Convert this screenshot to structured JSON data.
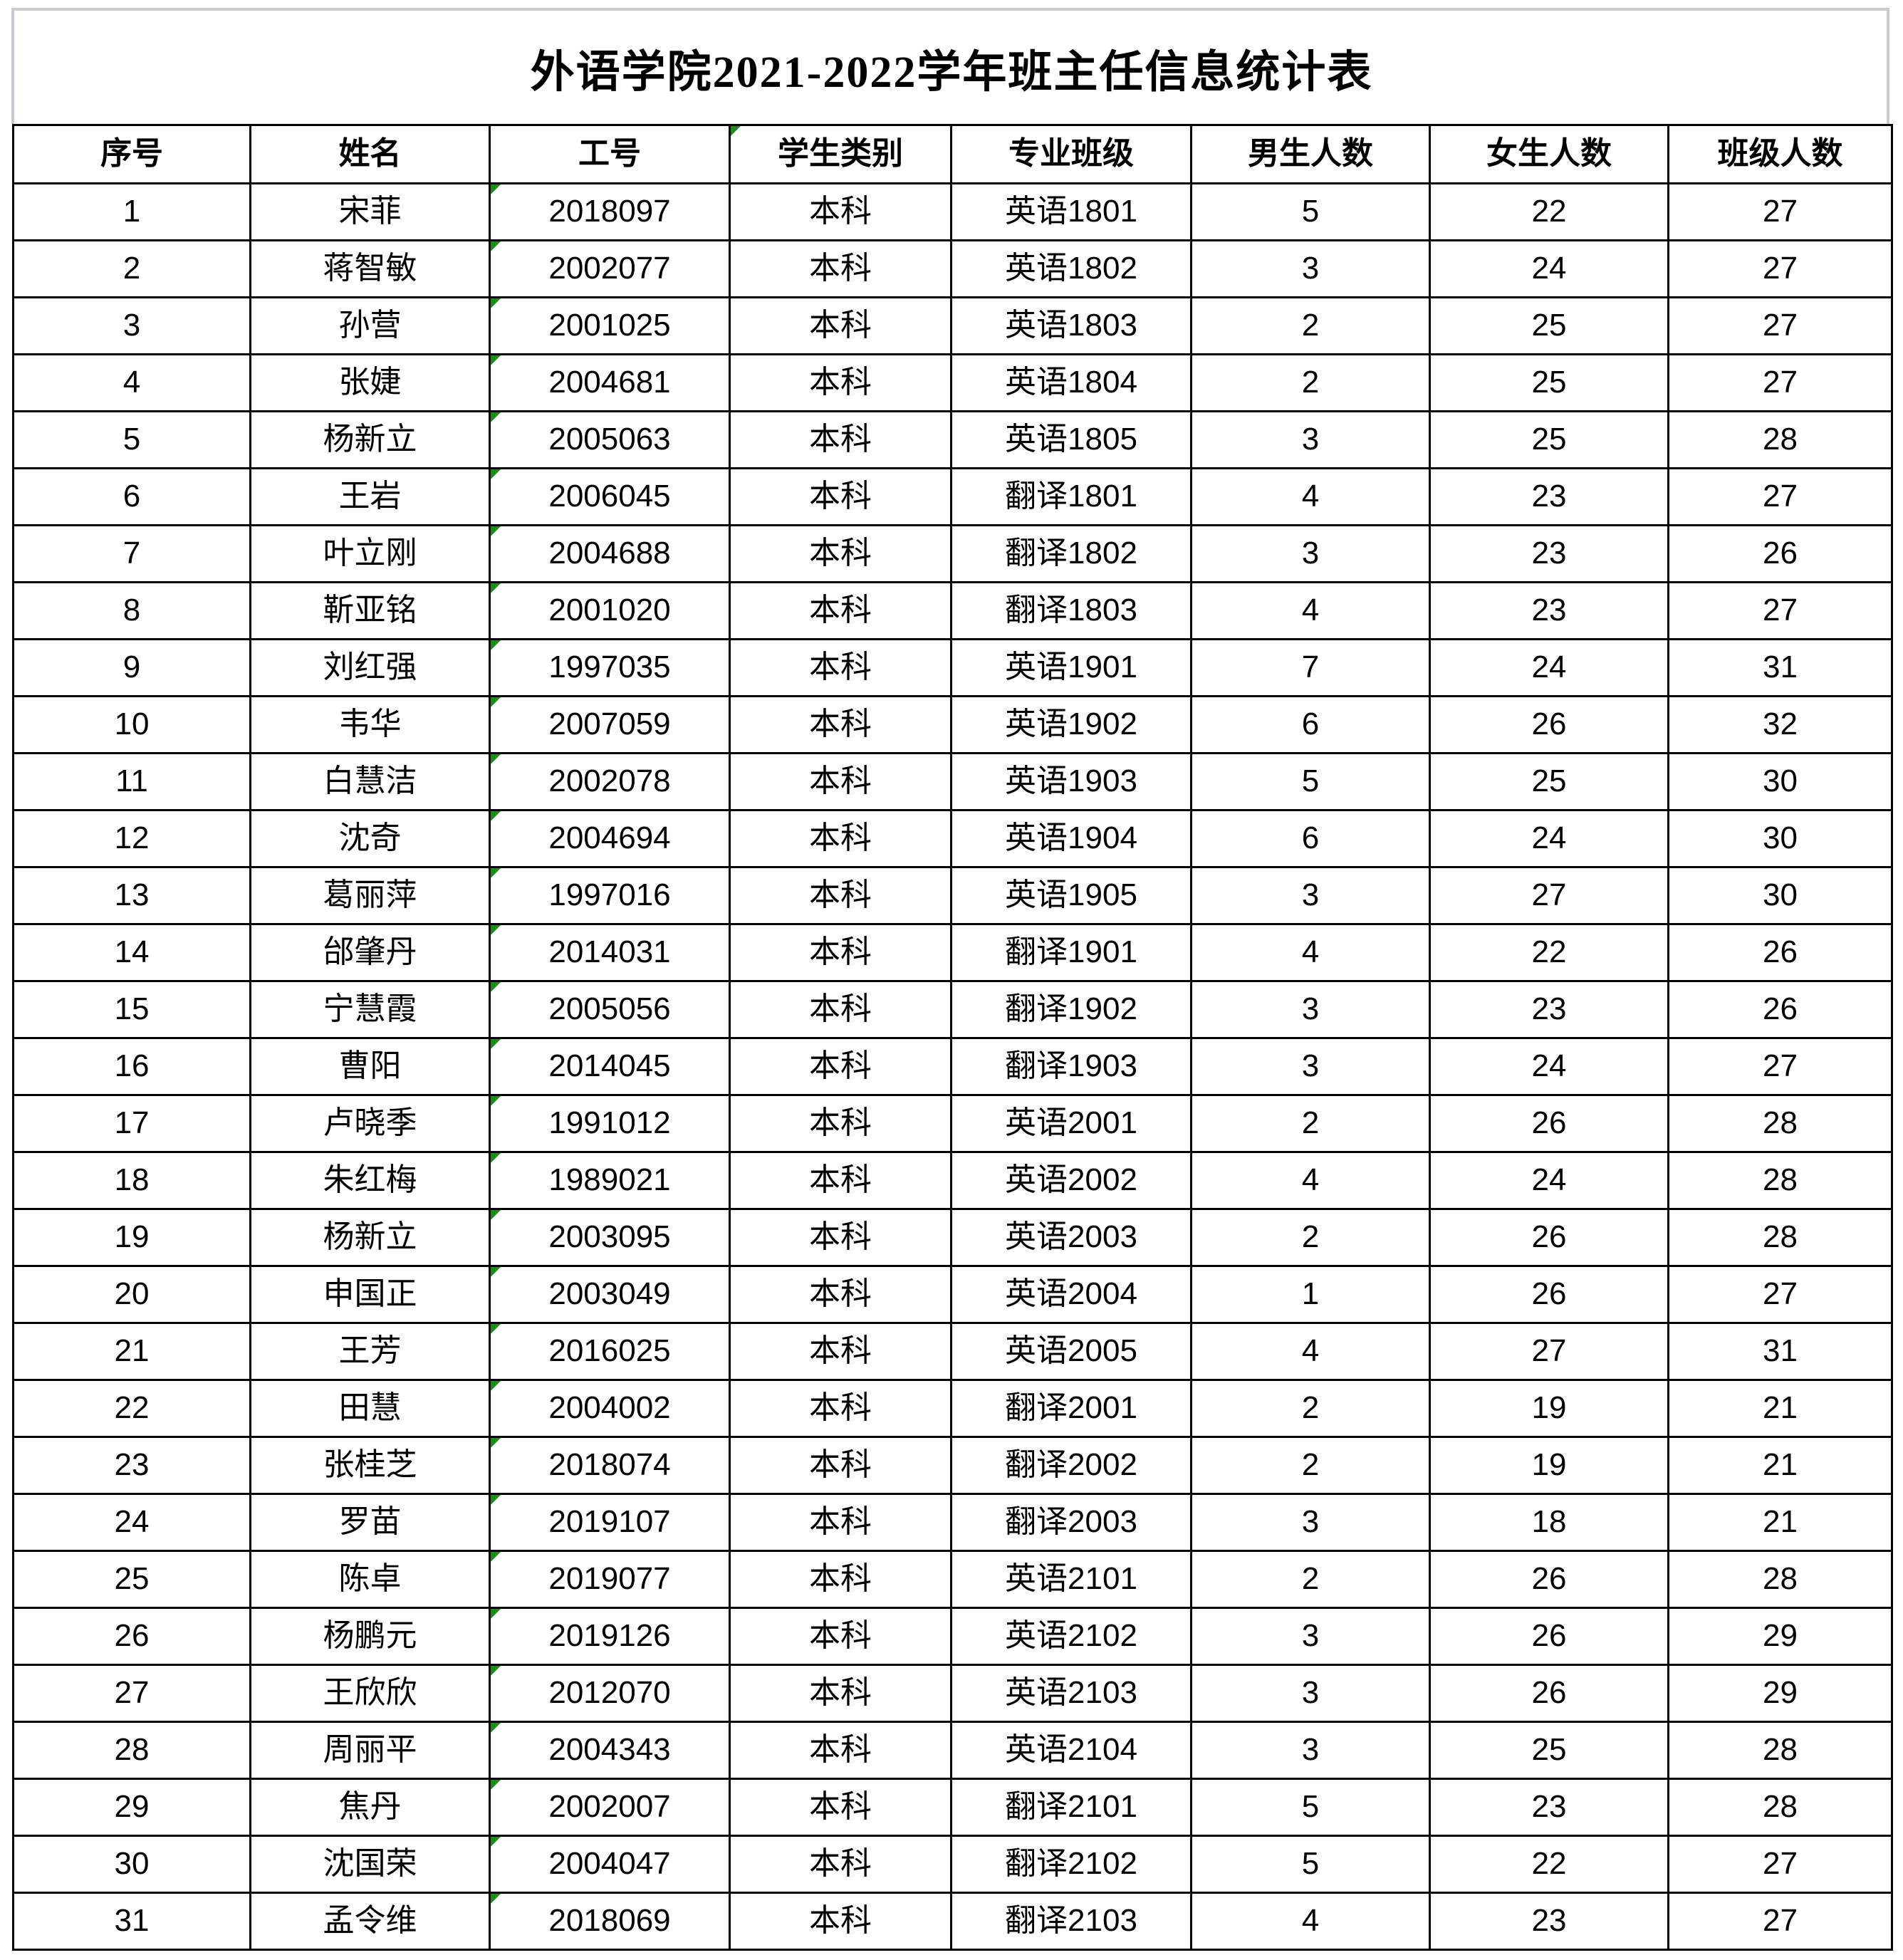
{
  "title": "外语学院2021-2022学年班主任信息统计表",
  "colors": {
    "table_border": "#000000",
    "title_gridline_gray": "#c9c9d0",
    "indicator_green": "#1e8c1e"
  },
  "icons": {
    "cell_corner_indicator": "text-format-indicator-icon"
  },
  "table": {
    "columns": [
      {
        "key": "index",
        "label": "序号",
        "indicator": false
      },
      {
        "key": "name",
        "label": "姓名",
        "indicator": false
      },
      {
        "key": "employee-id",
        "label": "工号",
        "indicator": false
      },
      {
        "key": "student-type",
        "label": "学生类别",
        "indicator": true
      },
      {
        "key": "major-class",
        "label": "专业班级",
        "indicator": false
      },
      {
        "key": "male-count",
        "label": "男生人数",
        "indicator": false
      },
      {
        "key": "female-count",
        "label": "女生人数",
        "indicator": false
      },
      {
        "key": "class-size",
        "label": "班级人数",
        "indicator": false
      }
    ],
    "indicator_column_key": "employee-id",
    "rows": [
      [
        "1",
        "宋菲",
        "2018097",
        "本科",
        "英语1801",
        "5",
        "22",
        "27"
      ],
      [
        "2",
        "蒋智敏",
        "2002077",
        "本科",
        "英语1802",
        "3",
        "24",
        "27"
      ],
      [
        "3",
        "孙营",
        "2001025",
        "本科",
        "英语1803",
        "2",
        "25",
        "27"
      ],
      [
        "4",
        "张婕",
        "2004681",
        "本科",
        "英语1804",
        "2",
        "25",
        "27"
      ],
      [
        "5",
        "杨新立",
        "2005063",
        "本科",
        "英语1805",
        "3",
        "25",
        "28"
      ],
      [
        "6",
        "王岩",
        "2006045",
        "本科",
        "翻译1801",
        "4",
        "23",
        "27"
      ],
      [
        "7",
        "叶立刚",
        "2004688",
        "本科",
        "翻译1802",
        "3",
        "23",
        "26"
      ],
      [
        "8",
        "靳亚铭",
        "2001020",
        "本科",
        "翻译1803",
        "4",
        "23",
        "27"
      ],
      [
        "9",
        "刘红强",
        "1997035",
        "本科",
        "英语1901",
        "7",
        "24",
        "31"
      ],
      [
        "10",
        "韦华",
        "2007059",
        "本科",
        "英语1902",
        "6",
        "26",
        "32"
      ],
      [
        "11",
        "白慧洁",
        "2002078",
        "本科",
        "英语1903",
        "5",
        "25",
        "30"
      ],
      [
        "12",
        "沈奇",
        "2004694",
        "本科",
        "英语1904",
        "6",
        "24",
        "30"
      ],
      [
        "13",
        "葛丽萍",
        "1997016",
        "本科",
        "英语1905",
        "3",
        "27",
        "30"
      ],
      [
        "14",
        "邰肇丹",
        "2014031",
        "本科",
        "翻译1901",
        "4",
        "22",
        "26"
      ],
      [
        "15",
        "宁慧霞",
        "2005056",
        "本科",
        "翻译1902",
        "3",
        "23",
        "26"
      ],
      [
        "16",
        "曹阳",
        "2014045",
        "本科",
        "翻译1903",
        "3",
        "24",
        "27"
      ],
      [
        "17",
        "卢晓季",
        "1991012",
        "本科",
        "英语2001",
        "2",
        "26",
        "28"
      ],
      [
        "18",
        "朱红梅",
        "1989021",
        "本科",
        "英语2002",
        "4",
        "24",
        "28"
      ],
      [
        "19",
        "杨新立",
        "2003095",
        "本科",
        "英语2003",
        "2",
        "26",
        "28"
      ],
      [
        "20",
        "申国正",
        "2003049",
        "本科",
        "英语2004",
        "1",
        "26",
        "27"
      ],
      [
        "21",
        "王芳",
        "2016025",
        "本科",
        "英语2005",
        "4",
        "27",
        "31"
      ],
      [
        "22",
        "田慧",
        "2004002",
        "本科",
        "翻译2001",
        "2",
        "19",
        "21"
      ],
      [
        "23",
        "张桂芝",
        "2018074",
        "本科",
        "翻译2002",
        "2",
        "19",
        "21"
      ],
      [
        "24",
        "罗苗",
        "2019107",
        "本科",
        "翻译2003",
        "3",
        "18",
        "21"
      ],
      [
        "25",
        "陈卓",
        "2019077",
        "本科",
        "英语2101",
        "2",
        "26",
        "28"
      ],
      [
        "26",
        "杨鹏元",
        "2019126",
        "本科",
        "英语2102",
        "3",
        "26",
        "29"
      ],
      [
        "27",
        "王欣欣",
        "2012070",
        "本科",
        "英语2103",
        "3",
        "26",
        "29"
      ],
      [
        "28",
        "周丽平",
        "2004343",
        "本科",
        "英语2104",
        "3",
        "25",
        "28"
      ],
      [
        "29",
        "焦丹",
        "2002007",
        "本科",
        "翻译2101",
        "5",
        "23",
        "28"
      ],
      [
        "30",
        "沈国荣",
        "2004047",
        "本科",
        "翻译2102",
        "5",
        "22",
        "27"
      ],
      [
        "31",
        "孟令维",
        "2018069",
        "本科",
        "翻译2103",
        "4",
        "23",
        "27"
      ]
    ]
  }
}
